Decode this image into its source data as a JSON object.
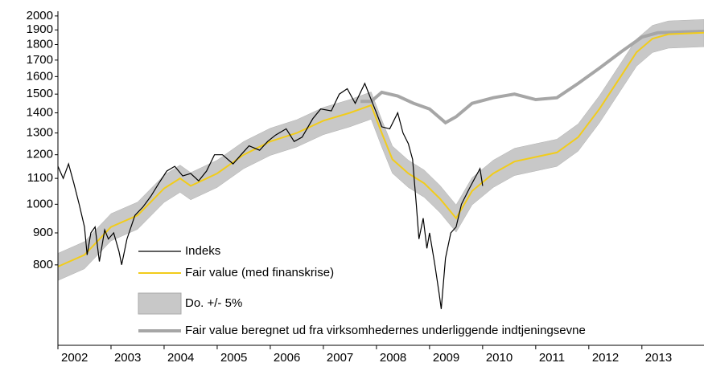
{
  "chart_data": {
    "type": "line",
    "log_y": true,
    "xlim": [
      2002,
      2014.17
    ],
    "xticks": [
      2002,
      2003,
      2004,
      2005,
      2006,
      2007,
      2008,
      2009,
      2010,
      2011,
      2012,
      2013
    ],
    "ylim": [
      595,
      2035
    ],
    "yticks": [
      800,
      900,
      1000,
      1100,
      1200,
      1300,
      1400,
      1500,
      1600,
      1700,
      1800,
      1900,
      2000
    ],
    "band_pct": 5,
    "series": [
      {
        "name": "Indeks",
        "color": "#000000",
        "kind": "line",
        "x": [
          2002.0,
          2002.1,
          2002.2,
          2002.3,
          2002.4,
          2002.5,
          2002.55,
          2002.62,
          2002.7,
          2002.78,
          2002.88,
          2002.95,
          2003.05,
          2003.15,
          2003.2,
          2003.3,
          2003.45,
          2003.6,
          2003.75,
          2003.9,
          2004.05,
          2004.2,
          2004.35,
          2004.5,
          2004.65,
          2004.8,
          2004.95,
          2005.1,
          2005.3,
          2005.45,
          2005.6,
          2005.8,
          2005.95,
          2006.1,
          2006.3,
          2006.45,
          2006.6,
          2006.8,
          2006.95,
          2007.15,
          2007.3,
          2007.45,
          2007.6,
          2007.78,
          2007.9,
          2008.0,
          2008.1,
          2008.25,
          2008.4,
          2008.5,
          2008.6,
          2008.68,
          2008.75,
          2008.8,
          2008.88,
          2008.95,
          2009.0,
          2009.1,
          2009.18,
          2009.22,
          2009.3,
          2009.4,
          2009.5,
          2009.6,
          2009.75,
          2009.85,
          2009.95,
          2010.0
        ],
        "values": [
          1150,
          1100,
          1160,
          1080,
          1000,
          920,
          830,
          900,
          920,
          810,
          910,
          880,
          900,
          840,
          800,
          880,
          960,
          990,
          1030,
          1080,
          1130,
          1150,
          1110,
          1120,
          1090,
          1130,
          1200,
          1200,
          1160,
          1200,
          1240,
          1220,
          1260,
          1290,
          1320,
          1260,
          1280,
          1370,
          1420,
          1410,
          1500,
          1530,
          1450,
          1560,
          1470,
          1400,
          1330,
          1320,
          1400,
          1300,
          1250,
          1180,
          1000,
          880,
          950,
          850,
          900,
          800,
          720,
          680,
          820,
          900,
          920,
          1000,
          1060,
          1100,
          1140,
          1070
        ]
      },
      {
        "name": "Fair value (med finanskrise)",
        "color": "#f2cc1a",
        "kind": "fair",
        "x": [
          2002.0,
          2002.5,
          2003.0,
          2003.5,
          2004.0,
          2004.3,
          2004.5,
          2005.0,
          2005.5,
          2006.0,
          2006.5,
          2007.0,
          2007.5,
          2007.9,
          2008.1,
          2008.3,
          2008.6,
          2008.9,
          2009.2,
          2009.5,
          2009.8,
          2010.2,
          2010.6,
          2011.0,
          2011.4,
          2011.8,
          2012.2,
          2012.6,
          2012.9,
          2013.2,
          2013.5,
          2014.17
        ],
        "values": [
          795,
          830,
          920,
          960,
          1060,
          1100,
          1070,
          1120,
          1200,
          1260,
          1300,
          1360,
          1400,
          1440,
          1300,
          1180,
          1120,
          1080,
          1020,
          950,
          1050,
          1120,
          1170,
          1190,
          1210,
          1280,
          1420,
          1600,
          1750,
          1840,
          1870,
          1880
        ]
      },
      {
        "name": "Do. +/- 5%",
        "color": "#c8c8c8",
        "kind": "band"
      },
      {
        "name": "Fair value beregnet ud fra virksomhedernes underliggende indtjeningsevne",
        "color": "#a6a6a6",
        "kind": "line2",
        "x": [
          2007.7,
          2007.9,
          2008.1,
          2008.4,
          2008.7,
          2009.0,
          2009.3,
          2009.5,
          2009.8,
          2010.2,
          2010.6,
          2011.0,
          2011.4,
          2011.8,
          2012.2,
          2012.6,
          2013.0,
          2013.3,
          2014.17
        ],
        "values": [
          1460,
          1460,
          1510,
          1490,
          1450,
          1420,
          1350,
          1380,
          1450,
          1480,
          1500,
          1470,
          1480,
          1560,
          1650,
          1750,
          1850,
          1880,
          1890
        ]
      }
    ]
  }
}
